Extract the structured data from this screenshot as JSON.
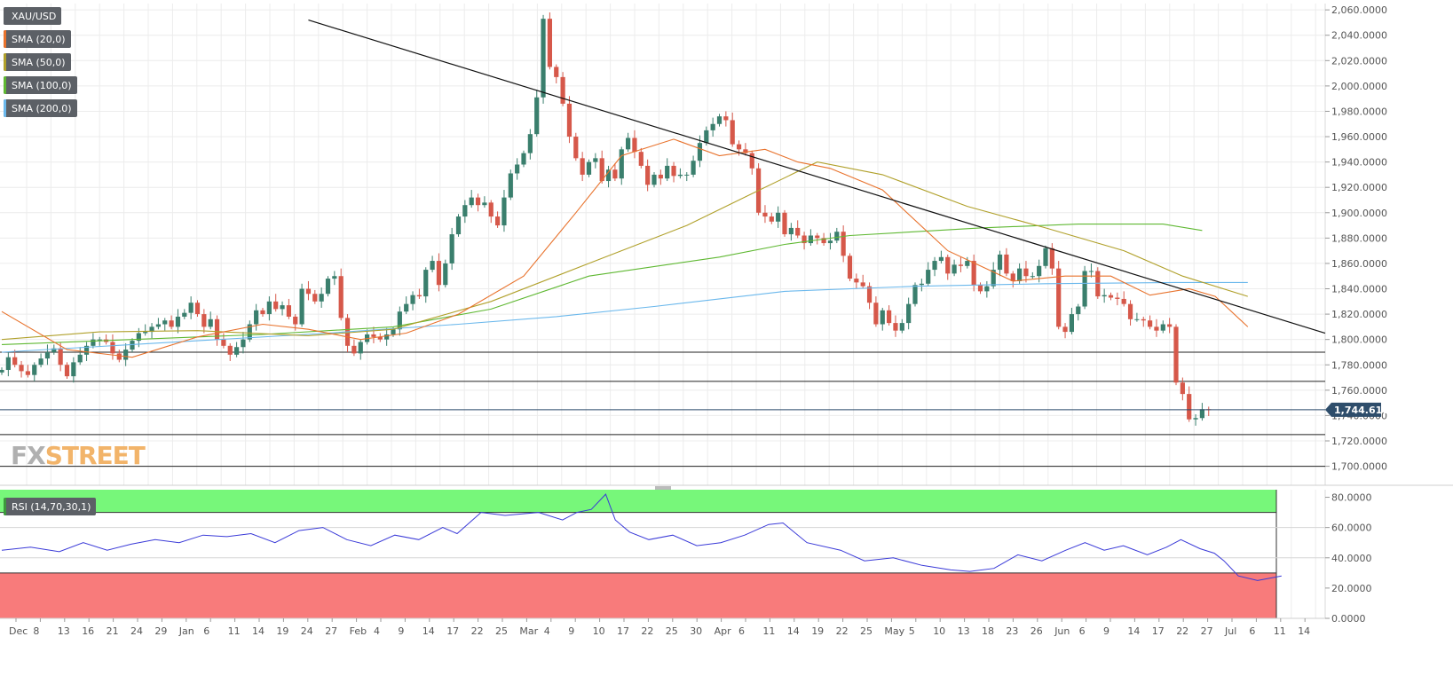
{
  "symbol": "XAU/USD",
  "indicators": [
    {
      "label": "SMA (20,0)",
      "color": "#e8722c"
    },
    {
      "label": "SMA (50,0)",
      "color": "#b0a02a"
    },
    {
      "label": "SMA (100,0)",
      "color": "#5fb832"
    },
    {
      "label": "SMA (200,0)",
      "color": "#6bb8ec"
    }
  ],
  "rsi_label": "RSI (14,70,30,1)",
  "brand": {
    "part1": "FX",
    "part2": "STREET"
  },
  "chart_data": [
    {
      "type": "candlestick",
      "series_name": "XAU/USD",
      "current_price_label": "1,744.6100",
      "current_price": 1744.61,
      "ylim": [
        1685,
        2065
      ],
      "y_ticks": [
        1700,
        1720,
        1740,
        1760,
        1780,
        1800,
        1820,
        1840,
        1860,
        1880,
        1900,
        1920,
        1940,
        1960,
        1980,
        2000,
        2020,
        2040,
        2060
      ],
      "y_tick_labels": [
        "1,700.0000",
        "1,720.0000",
        "1,740.0000",
        "1,760.0000",
        "1,780.0000",
        "1,800.0000",
        "1,820.0000",
        "1,840.0000",
        "1,860.0000",
        "1,880.0000",
        "1,900.0000",
        "1,920.0000",
        "1,940.0000",
        "1,960.0000",
        "1,980.0000",
        "2,000.0000",
        "2,020.0000",
        "2,040.0000",
        "2,060.0000"
      ],
      "x_labels": [
        "Dec",
        "8",
        "13",
        "16",
        "21",
        "24",
        "29",
        "Jan",
        "6",
        "11",
        "14",
        "19",
        "24",
        "27",
        "Feb",
        "4",
        "9",
        "14",
        "17",
        "22",
        "25",
        "Mar",
        "4",
        "9",
        "10",
        "17",
        "22",
        "25",
        "30",
        "Apr",
        "6",
        "11",
        "14",
        "19",
        "22",
        "25",
        "May",
        "5",
        "10",
        "13",
        "18",
        "23",
        "26",
        "Jun",
        "6",
        "9",
        "14",
        "17",
        "22",
        "27",
        "Jul",
        "6",
        "11",
        "14"
      ],
      "horizontal_levels": [
        1790,
        1767,
        1725,
        1700
      ],
      "trendline": [
        [
          47,
          2052
        ],
        [
          191,
          1805
        ]
      ],
      "closes": [
        1776,
        1786,
        1780,
        1775,
        1772,
        1780,
        1785,
        1790,
        1793,
        1780,
        1771,
        1782,
        1788,
        1795,
        1800,
        1800,
        1798,
        1789,
        1784,
        1792,
        1799,
        1805,
        1806,
        1810,
        1812,
        1815,
        1810,
        1818,
        1821,
        1829,
        1820,
        1810,
        1816,
        1800,
        1795,
        1788,
        1794,
        1800,
        1812,
        1823,
        1820,
        1830,
        1824,
        1827,
        1818,
        1812,
        1840,
        1836,
        1830,
        1836,
        1848,
        1850,
        1817,
        1795,
        1789,
        1798,
        1804,
        1802,
        1800,
        1804,
        1808,
        1822,
        1828,
        1835,
        1834,
        1855,
        1862,
        1843,
        1860,
        1883,
        1897,
        1906,
        1912,
        1906,
        1908,
        1897,
        1890,
        1912,
        1931,
        1938,
        1947,
        1962,
        1991,
        2053,
        2015,
        2007,
        1986,
        1960,
        1943,
        1930,
        1940,
        1943,
        1925,
        1934,
        1927,
        1950,
        1959,
        1948,
        1937,
        1922,
        1930,
        1927,
        1937,
        1929,
        1930,
        1930,
        1941,
        1955,
        1965,
        1970,
        1976,
        1973,
        1954,
        1950,
        1947,
        1935,
        1900,
        1897,
        1893,
        1900,
        1883,
        1888,
        1882,
        1876,
        1882,
        1880,
        1876,
        1878,
        1885,
        1866,
        1848,
        1845,
        1842,
        1829,
        1812,
        1823,
        1813,
        1807,
        1813,
        1828,
        1843,
        1844,
        1855,
        1862,
        1865,
        1852,
        1859,
        1858,
        1862,
        1843,
        1838,
        1842,
        1855,
        1867,
        1852,
        1846,
        1856,
        1850,
        1850,
        1858,
        1872,
        1856,
        1810,
        1806,
        1820,
        1826,
        1854,
        1854,
        1834,
        1835,
        1833,
        1832,
        1828,
        1816,
        1816,
        1815,
        1810,
        1807,
        1812,
        1810,
        1766,
        1757,
        1737,
        1738,
        1745,
        1744.61
      ],
      "sma20": [
        [
          0,
          1822
        ],
        [
          10,
          1792
        ],
        [
          20,
          1786
        ],
        [
          30,
          1802
        ],
        [
          40,
          1812
        ],
        [
          47,
          1808
        ],
        [
          55,
          1800
        ],
        [
          62,
          1805
        ],
        [
          70,
          1820
        ],
        [
          80,
          1850
        ],
        [
          88,
          1900
        ],
        [
          95,
          1945
        ],
        [
          103,
          1958
        ],
        [
          110,
          1945
        ],
        [
          117,
          1950
        ],
        [
          122,
          1940
        ],
        [
          127,
          1935
        ],
        [
          135,
          1918
        ],
        [
          145,
          1870
        ],
        [
          155,
          1846
        ],
        [
          163,
          1850
        ],
        [
          170,
          1850
        ],
        [
          176,
          1835
        ],
        [
          182,
          1840
        ],
        [
          186,
          1834
        ],
        [
          191,
          1810
        ]
      ],
      "sma50": [
        [
          0,
          1800
        ],
        [
          15,
          1806
        ],
        [
          30,
          1807
        ],
        [
          47,
          1803
        ],
        [
          60,
          1808
        ],
        [
          75,
          1830
        ],
        [
          90,
          1860
        ],
        [
          105,
          1890
        ],
        [
          115,
          1915
        ],
        [
          125,
          1940
        ],
        [
          135,
          1930
        ],
        [
          148,
          1905
        ],
        [
          160,
          1888
        ],
        [
          172,
          1870
        ],
        [
          181,
          1850
        ],
        [
          191,
          1834
        ]
      ],
      "sma100": [
        [
          0,
          1796
        ],
        [
          20,
          1800
        ],
        [
          40,
          1804
        ],
        [
          60,
          1810
        ],
        [
          75,
          1824
        ],
        [
          90,
          1850
        ],
        [
          110,
          1865
        ],
        [
          120,
          1875
        ],
        [
          130,
          1882
        ],
        [
          150,
          1888
        ],
        [
          165,
          1891
        ],
        [
          178,
          1891
        ],
        [
          184,
          1886
        ]
      ],
      "sma200": [
        [
          0,
          1790
        ],
        [
          30,
          1799
        ],
        [
          50,
          1805
        ],
        [
          70,
          1812
        ],
        [
          85,
          1818
        ],
        [
          100,
          1826
        ],
        [
          120,
          1838
        ],
        [
          140,
          1842
        ],
        [
          160,
          1844
        ],
        [
          180,
          1845
        ],
        [
          191,
          1845
        ]
      ]
    },
    {
      "type": "line",
      "series_name": "RSI (14,70,30,1)",
      "ylim": [
        0,
        85
      ],
      "y_ticks": [
        0,
        20,
        40,
        60,
        80
      ],
      "y_tick_labels": [
        "0.0000",
        "20.0000",
        "40.0000",
        "60.0000",
        "80.0000"
      ],
      "overbought": 70,
      "oversold": 30,
      "values": [
        [
          0,
          45
        ],
        [
          6,
          47
        ],
        [
          12,
          44
        ],
        [
          17,
          50
        ],
        [
          22,
          45
        ],
        [
          27,
          49
        ],
        [
          32,
          52
        ],
        [
          37,
          50
        ],
        [
          42,
          55
        ],
        [
          47,
          54
        ],
        [
          52,
          56
        ],
        [
          57,
          50
        ],
        [
          62,
          58
        ],
        [
          67,
          60
        ],
        [
          72,
          52
        ],
        [
          77,
          48
        ],
        [
          82,
          55
        ],
        [
          87,
          52
        ],
        [
          92,
          60
        ],
        [
          95,
          56
        ],
        [
          100,
          70
        ],
        [
          105,
          68
        ],
        [
          112,
          70
        ],
        [
          117,
          65
        ],
        [
          120,
          70
        ],
        [
          123,
          72
        ],
        [
          126,
          82
        ],
        [
          128,
          65
        ],
        [
          131,
          57
        ],
        [
          135,
          52
        ],
        [
          140,
          55
        ],
        [
          145,
          48
        ],
        [
          150,
          50
        ],
        [
          155,
          55
        ],
        [
          160,
          62
        ],
        [
          163,
          63
        ],
        [
          168,
          50
        ],
        [
          175,
          45
        ],
        [
          180,
          38
        ],
        [
          186,
          40
        ],
        [
          192,
          35
        ],
        [
          198,
          32
        ],
        [
          202,
          31
        ],
        [
          207,
          33
        ],
        [
          212,
          42
        ],
        [
          217,
          38
        ],
        [
          222,
          45
        ],
        [
          226,
          50
        ],
        [
          230,
          45
        ],
        [
          234,
          48
        ],
        [
          239,
          42
        ],
        [
          243,
          47
        ],
        [
          246,
          52
        ],
        [
          250,
          46
        ],
        [
          253,
          43
        ],
        [
          255,
          38
        ],
        [
          258,
          28
        ],
        [
          262,
          25
        ],
        [
          267,
          28
        ]
      ]
    }
  ]
}
